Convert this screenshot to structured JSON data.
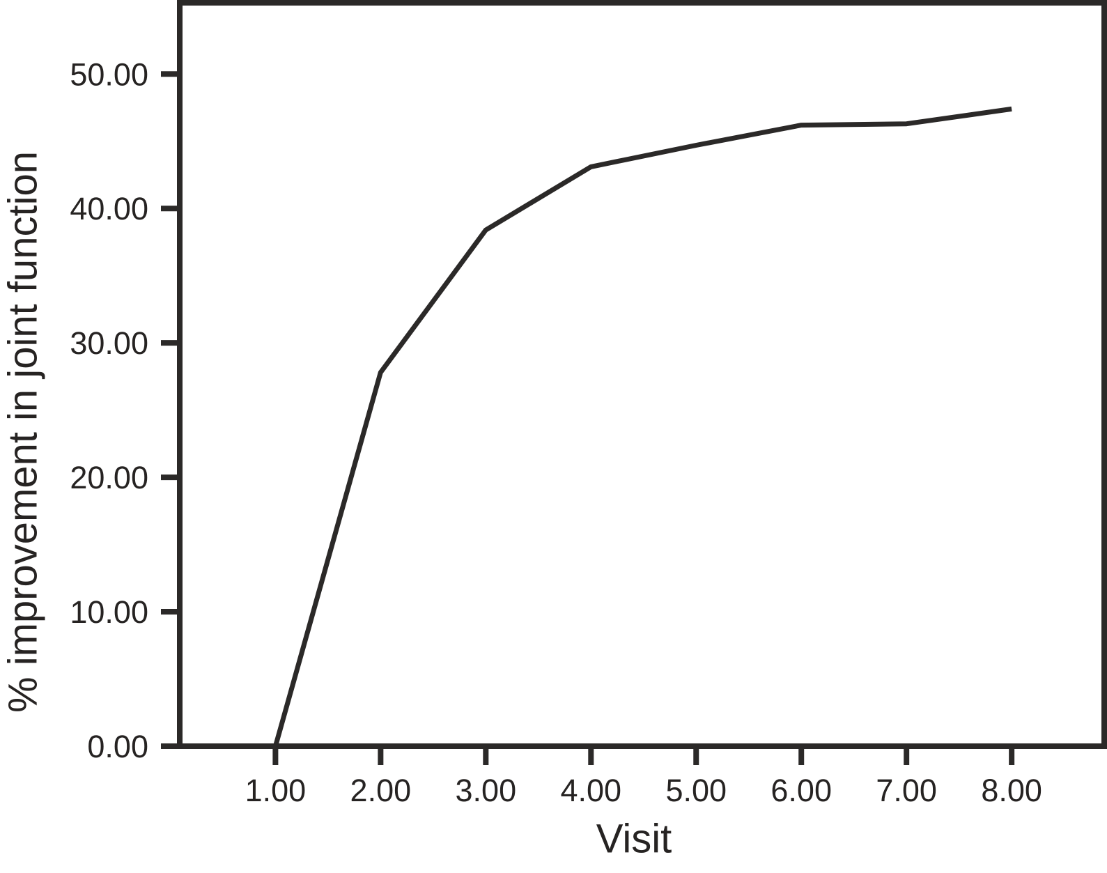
{
  "chart_data": {
    "type": "line",
    "title": "",
    "xlabel": "Visit",
    "ylabel": "% improvement in joint function",
    "x": [
      1,
      2,
      3,
      4,
      5,
      6,
      7,
      8
    ],
    "y": [
      0.0,
      27.8,
      38.4,
      43.1,
      44.7,
      46.2,
      46.3,
      47.4
    ],
    "x_tick_values": [
      1,
      2,
      3,
      4,
      5,
      6,
      7,
      8
    ],
    "x_tick_labels": [
      "1.00",
      "2.00",
      "3.00",
      "4.00",
      "5.00",
      "6.00",
      "7.00",
      "8.00"
    ],
    "y_tick_values": [
      0,
      10,
      20,
      30,
      40,
      50
    ],
    "y_tick_labels": [
      "0.00",
      "10.00",
      "20.00",
      "30.00",
      "40.00",
      "50.00"
    ],
    "xlim": [
      0.09,
      8.88
    ],
    "ylim": [
      0,
      55.3
    ],
    "grid": false,
    "legend": null,
    "series_name": "% improvement in joint function",
    "line_color": "#2b2928",
    "axis_color": "#2b2928",
    "text_color": "#262322",
    "background": "#ffffff"
  }
}
